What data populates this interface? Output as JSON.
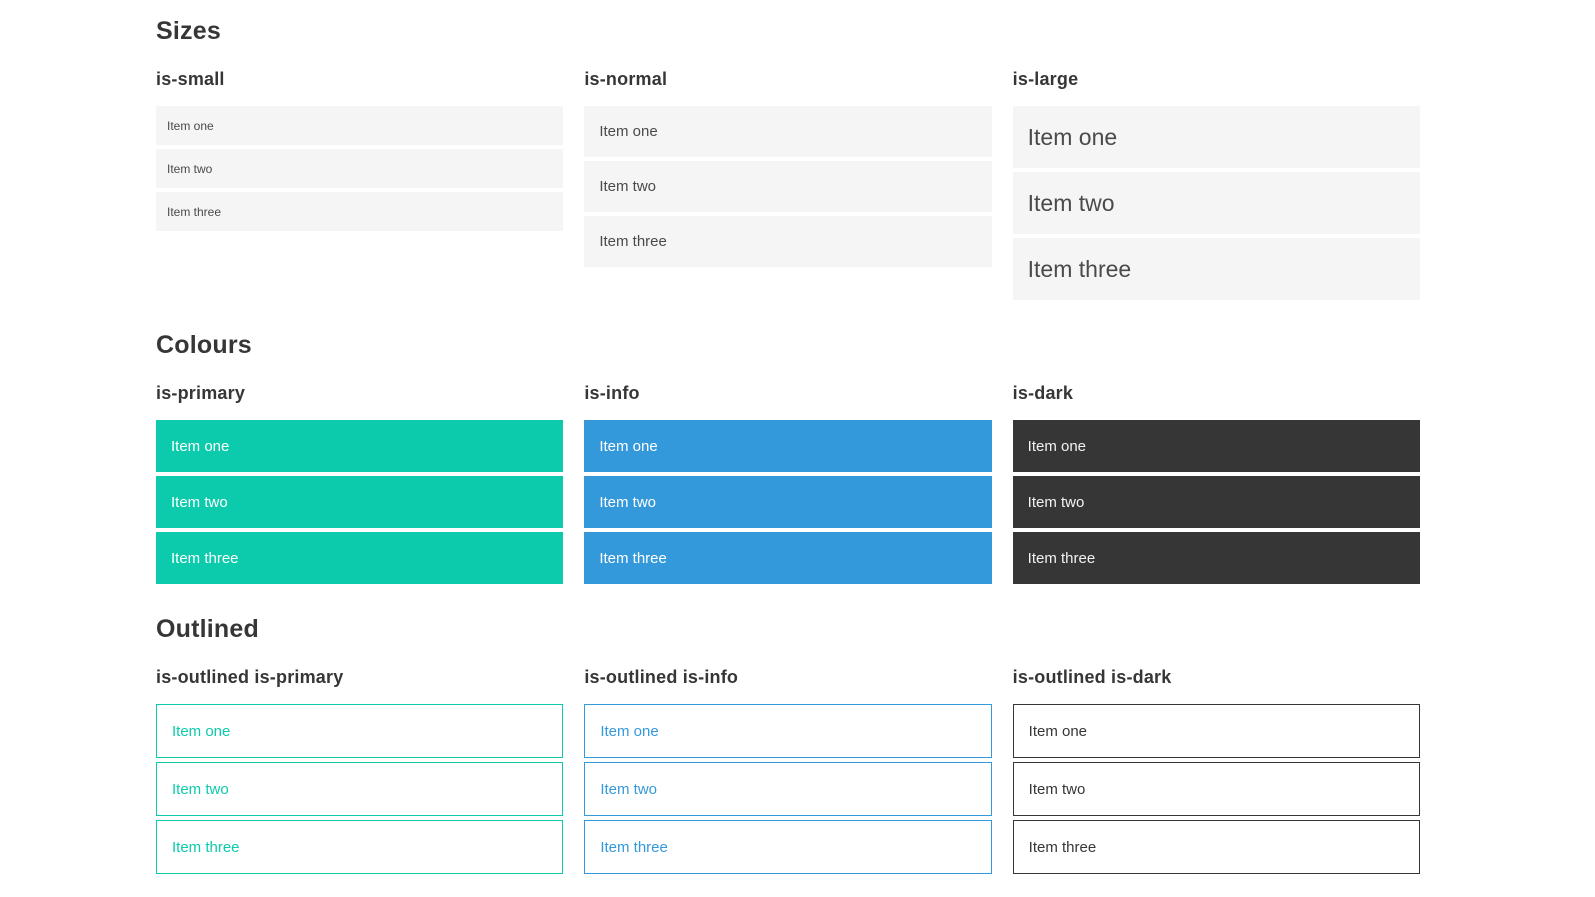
{
  "colors": {
    "primary": "#0ccbad",
    "info": "#3499db",
    "dark": "#363636",
    "light_bg": "#f5f5f5",
    "body_text": "#4a4a4a",
    "heading": "#363636",
    "page_bg": "#ffffff"
  },
  "sections": [
    {
      "title": "Sizes",
      "groups": [
        {
          "label": "is-small",
          "items": [
            "Item one",
            "Item two",
            "Item three"
          ]
        },
        {
          "label": "is-normal",
          "items": [
            "Item one",
            "Item two",
            "Item three"
          ]
        },
        {
          "label": "is-large",
          "items": [
            "Item one",
            "Item two",
            "Item three"
          ]
        }
      ]
    },
    {
      "title": "Colours",
      "groups": [
        {
          "label": "is-primary",
          "items": [
            "Item one",
            "Item two",
            "Item three"
          ]
        },
        {
          "label": "is-info",
          "items": [
            "Item one",
            "Item two",
            "Item three"
          ]
        },
        {
          "label": "is-dark",
          "items": [
            "Item one",
            "Item two",
            "Item three"
          ]
        }
      ]
    },
    {
      "title": "Outlined",
      "groups": [
        {
          "label": "is-outlined is-primary",
          "items": [
            "Item one",
            "Item two",
            "Item three"
          ]
        },
        {
          "label": "is-outlined is-info",
          "items": [
            "Item one",
            "Item two",
            "Item three"
          ]
        },
        {
          "label": "is-outlined is-dark",
          "items": [
            "Item one",
            "Item two",
            "Item three"
          ]
        }
      ]
    }
  ]
}
